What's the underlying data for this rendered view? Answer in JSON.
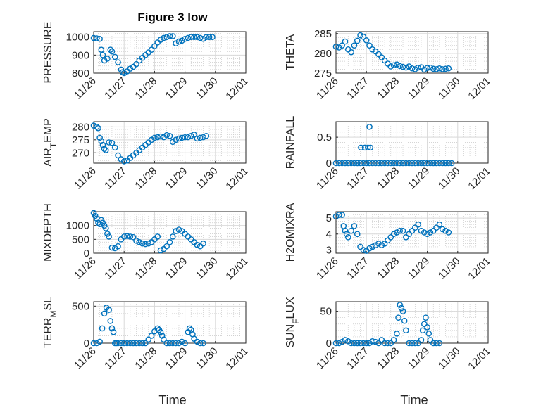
{
  "figure": {
    "title": "Figure 3 low",
    "marker_color": "#0072BD",
    "x_axis_label": "Time",
    "x_ticks": [
      "11/26",
      "11/27",
      "11/28",
      "11/29",
      "11/30",
      "12/01"
    ],
    "x_range": [
      0,
      5
    ]
  },
  "chart_data": [
    {
      "type": "scatter",
      "panel": "pressure",
      "ylabel": "PRESSURE",
      "ylim": [
        800,
        1030
      ],
      "yticks": [
        800,
        900,
        1000
      ],
      "grid": true,
      "x": [
        0.0,
        0.1,
        0.2,
        0.25,
        0.3,
        0.35,
        0.45,
        0.55,
        0.6,
        0.7,
        0.8,
        0.9,
        0.95,
        1.0,
        1.1,
        1.2,
        1.3,
        1.4,
        1.5,
        1.6,
        1.7,
        1.8,
        1.9,
        2.0,
        2.1,
        2.2,
        2.3,
        2.4,
        2.5,
        2.6,
        2.7,
        2.8,
        2.9,
        3.0,
        3.1,
        3.2,
        3.3,
        3.4,
        3.5,
        3.6,
        3.7,
        3.8,
        3.9
      ],
      "y": [
        995,
        993,
        990,
        930,
        900,
        870,
        880,
        930,
        920,
        890,
        860,
        820,
        805,
        800,
        810,
        825,
        835,
        850,
        870,
        885,
        900,
        915,
        930,
        950,
        970,
        985,
        995,
        1000,
        1005,
        1005,
        965,
        975,
        980,
        990,
        995,
        1000,
        1000,
        1000,
        995,
        990,
        1000,
        1000,
        1000
      ]
    },
    {
      "type": "scatter",
      "panel": "theta",
      "ylabel": "THETA",
      "ylim": [
        275,
        285.5
      ],
      "yticks": [
        275,
        280,
        285
      ],
      "grid": true,
      "x": [
        0.0,
        0.1,
        0.2,
        0.3,
        0.4,
        0.5,
        0.6,
        0.7,
        0.8,
        0.9,
        1.0,
        1.1,
        1.2,
        1.3,
        1.4,
        1.5,
        1.6,
        1.7,
        1.8,
        1.9,
        2.0,
        2.1,
        2.2,
        2.3,
        2.4,
        2.5,
        2.6,
        2.7,
        2.8,
        2.9,
        3.0,
        3.1,
        3.2,
        3.3,
        3.4,
        3.5,
        3.6,
        3.7
      ],
      "y": [
        281.7,
        281.5,
        282.0,
        283.0,
        281.0,
        280.3,
        282.0,
        283.2,
        284.6,
        284.2,
        283.3,
        282.0,
        281.0,
        280.5,
        279.8,
        279.0,
        278.2,
        277.4,
        276.7,
        277.0,
        277.2,
        276.8,
        276.6,
        276.4,
        276.7,
        276.2,
        276.0,
        276.4,
        276.5,
        275.9,
        276.3,
        276.4,
        276.1,
        276.0,
        276.2,
        276.0,
        276.1,
        276.2
      ]
    },
    {
      "type": "scatter",
      "panel": "air_temp",
      "ylabel_main": "AIR",
      "ylabel_sub": "T",
      "ylabel_tail": "EMP",
      "ylim": [
        266,
        282
      ],
      "yticks": [
        270,
        275,
        280
      ],
      "grid": true,
      "x": [
        0.0,
        0.1,
        0.15,
        0.2,
        0.25,
        0.3,
        0.35,
        0.4,
        0.5,
        0.6,
        0.7,
        0.8,
        0.9,
        1.0,
        1.1,
        1.2,
        1.3,
        1.4,
        1.5,
        1.6,
        1.7,
        1.8,
        1.9,
        2.0,
        2.1,
        2.2,
        2.3,
        2.4,
        2.5,
        2.6,
        2.7,
        2.8,
        2.9,
        3.0,
        3.1,
        3.2,
        3.3,
        3.4,
        3.5,
        3.6,
        3.7
      ],
      "y": [
        280.5,
        280.0,
        279.5,
        275.8,
        274.5,
        273.0,
        271.5,
        271.0,
        274.0,
        273.8,
        272.0,
        269.0,
        267.5,
        266.7,
        267.0,
        268.0,
        269.0,
        270.0,
        271.0,
        272.0,
        273.0,
        274.0,
        275.0,
        275.8,
        276.0,
        276.3,
        276.0,
        276.8,
        276.5,
        274.2,
        275.0,
        275.5,
        275.8,
        276.0,
        276.0,
        276.5,
        277.0,
        275.5,
        275.8,
        276.0,
        276.5
      ]
    },
    {
      "type": "scatter",
      "panel": "rainfall",
      "ylabel": "RAINFALL",
      "ylim": [
        0,
        0.8
      ],
      "yticks": [
        0,
        0.5
      ],
      "ytick_labels": [
        "0",
        "0.5"
      ],
      "grid": true,
      "x": [
        0.0,
        0.1,
        0.2,
        0.3,
        0.4,
        0.5,
        0.6,
        0.7,
        0.8,
        0.9,
        1.0,
        1.1,
        1.2,
        1.3,
        1.4,
        1.5,
        1.6,
        1.7,
        1.8,
        1.9,
        2.0,
        2.1,
        2.2,
        2.3,
        2.4,
        2.5,
        2.6,
        2.7,
        2.8,
        2.9,
        3.0,
        3.1,
        3.2,
        3.3,
        3.4,
        3.5,
        3.6,
        3.7,
        3.8,
        0.82,
        0.95,
        1.05,
        1.1,
        1.13
      ],
      "y": [
        0,
        0,
        0,
        0,
        0,
        0,
        0,
        0,
        0,
        0,
        0,
        0,
        0,
        0,
        0,
        0,
        0,
        0,
        0,
        0,
        0,
        0,
        0,
        0,
        0,
        0,
        0,
        0,
        0,
        0,
        0,
        0,
        0,
        0,
        0,
        0,
        0,
        0,
        0,
        0.3,
        0.3,
        0.3,
        0.7,
        0.3
      ]
    },
    {
      "type": "scatter",
      "panel": "mixdepth",
      "ylabel": "MIXDEPTH",
      "ylim": [
        0,
        1500
      ],
      "yticks": [
        0,
        500,
        1000
      ],
      "grid": true,
      "x": [
        0.0,
        0.05,
        0.1,
        0.15,
        0.2,
        0.25,
        0.3,
        0.35,
        0.4,
        0.45,
        0.5,
        0.6,
        0.7,
        0.8,
        0.9,
        1.0,
        1.1,
        1.2,
        1.3,
        1.4,
        1.5,
        1.6,
        1.7,
        1.8,
        1.9,
        2.0,
        2.1,
        2.2,
        2.3,
        2.4,
        2.5,
        2.6,
        2.7,
        2.8,
        2.9,
        3.0,
        3.1,
        3.2,
        3.3,
        3.4,
        3.5,
        3.6
      ],
      "y": [
        1450,
        1350,
        1250,
        1100,
        1050,
        1200,
        1100,
        1000,
        900,
        700,
        600,
        200,
        180,
        250,
        500,
        600,
        620,
        600,
        580,
        450,
        400,
        350,
        330,
        350,
        400,
        500,
        600,
        100,
        150,
        250,
        400,
        600,
        800,
        850,
        800,
        700,
        600,
        500,
        400,
        300,
        250,
        350
      ]
    },
    {
      "type": "scatter",
      "panel": "h2omixra",
      "ylabel": "H2OMIXRA",
      "ylim": [
        2.8,
        5.4
      ],
      "yticks": [
        3,
        4,
        5
      ],
      "grid": true,
      "x": [
        0.0,
        0.1,
        0.2,
        0.25,
        0.3,
        0.35,
        0.4,
        0.5,
        0.6,
        0.7,
        0.8,
        0.9,
        1.0,
        1.1,
        1.2,
        1.3,
        1.4,
        1.5,
        1.6,
        1.7,
        1.8,
        1.9,
        2.0,
        2.1,
        2.2,
        2.3,
        2.4,
        2.5,
        2.6,
        2.7,
        2.8,
        2.9,
        3.0,
        3.1,
        3.2,
        3.3,
        3.4,
        3.5,
        3.6,
        3.7
      ],
      "y": [
        5.1,
        5.2,
        5.2,
        4.5,
        4.2,
        4.0,
        3.8,
        4.2,
        4.5,
        4.0,
        3.2,
        3.0,
        2.95,
        3.1,
        3.2,
        3.3,
        3.4,
        3.3,
        3.4,
        3.6,
        3.8,
        4.0,
        4.1,
        4.2,
        4.2,
        3.8,
        4.0,
        4.2,
        4.4,
        4.6,
        4.2,
        4.1,
        4.0,
        4.1,
        4.2,
        4.4,
        4.6,
        4.3,
        4.2,
        4.1
      ]
    },
    {
      "type": "scatter",
      "panel": "terr_msl",
      "ylabel_main": "TERR",
      "ylabel_sub": "M",
      "ylabel_tail": "SL",
      "ylim": [
        0,
        560
      ],
      "yticks": [
        0,
        500
      ],
      "grid": true,
      "x": [
        0.0,
        0.1,
        0.2,
        0.28,
        0.35,
        0.42,
        0.5,
        0.55,
        0.6,
        0.65,
        0.7,
        0.75,
        0.8,
        0.9,
        1.0,
        1.1,
        1.2,
        1.3,
        1.4,
        1.5,
        1.6,
        1.7,
        1.8,
        1.9,
        2.0,
        2.1,
        2.15,
        2.2,
        2.25,
        2.3,
        2.4,
        2.5,
        2.6,
        2.7,
        2.8,
        2.9,
        3.0,
        3.1,
        3.15,
        3.2,
        3.25,
        3.3,
        3.4,
        3.5,
        3.6
      ],
      "y": [
        0,
        0,
        20,
        200,
        400,
        480,
        450,
        300,
        200,
        150,
        0,
        0,
        0,
        0,
        0,
        0,
        0,
        0,
        0,
        0,
        0,
        0,
        50,
        100,
        160,
        200,
        180,
        150,
        100,
        50,
        0,
        0,
        0,
        0,
        0,
        20,
        0,
        150,
        200,
        180,
        120,
        60,
        20,
        0,
        0
      ]
    },
    {
      "type": "scatter",
      "panel": "sun_flux",
      "ylabel_main": "SUN",
      "ylabel_sub": "F",
      "ylabel_tail": "LUX",
      "ylim": [
        0,
        65
      ],
      "yticks": [
        0,
        50
      ],
      "grid": true,
      "x": [
        0.0,
        0.1,
        0.2,
        0.3,
        0.4,
        0.5,
        0.6,
        0.7,
        0.8,
        0.9,
        1.0,
        1.1,
        1.2,
        1.3,
        1.4,
        1.5,
        1.6,
        1.7,
        1.8,
        1.9,
        2.0,
        2.05,
        2.1,
        2.15,
        2.2,
        2.25,
        2.3,
        2.4,
        2.5,
        2.6,
        2.7,
        2.8,
        2.85,
        2.9,
        2.95,
        3.0,
        3.05,
        3.1,
        3.2,
        3.3,
        3.4
      ],
      "y": [
        0,
        0,
        2,
        5,
        3,
        0,
        0,
        0,
        0,
        0,
        0,
        0,
        3,
        2,
        0,
        5,
        0,
        0,
        0,
        5,
        15,
        40,
        60,
        55,
        50,
        35,
        20,
        0,
        0,
        0,
        0,
        5,
        20,
        30,
        40,
        25,
        15,
        5,
        0,
        0,
        0
      ]
    }
  ]
}
